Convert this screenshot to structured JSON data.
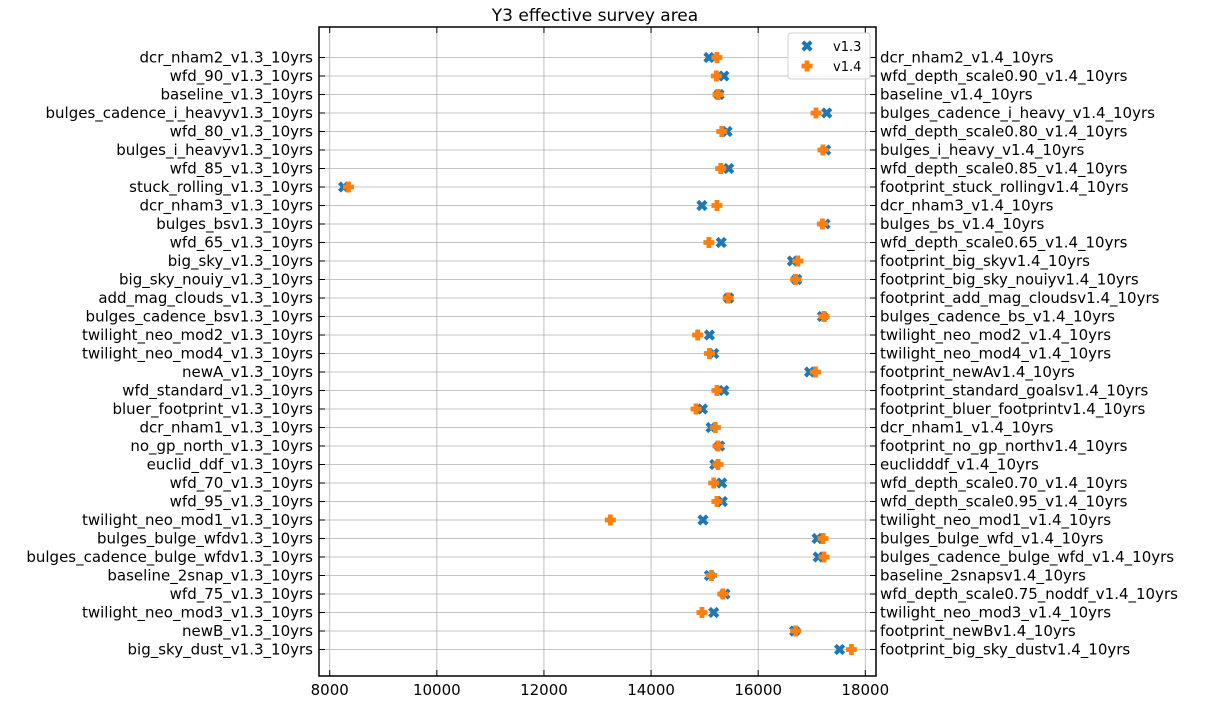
{
  "chart_data": {
    "type": "scatter",
    "title": "Y3 effective survey area",
    "xlabel": "",
    "ylabel": "",
    "xlim": [
      7800,
      18200
    ],
    "xticks": [
      8000,
      10000,
      12000,
      14000,
      16000,
      18000
    ],
    "grid": true,
    "legend_position": "top-right",
    "categories_left": [
      "dcr_nham2_v1.3_10yrs",
      "wfd_90_v1.3_10yrs",
      "baseline_v1.3_10yrs",
      "bulges_cadence_i_heavyv1.3_10yrs",
      "wfd_80_v1.3_10yrs",
      "bulges_i_heavyv1.3_10yrs",
      "wfd_85_v1.3_10yrs",
      "stuck_rolling_v1.3_10yrs",
      "dcr_nham3_v1.3_10yrs",
      "bulges_bsv1.3_10yrs",
      "wfd_65_v1.3_10yrs",
      "big_sky_v1.3_10yrs",
      "big_sky_nouiy_v1.3_10yrs",
      "add_mag_clouds_v1.3_10yrs",
      "bulges_cadence_bsv1.3_10yrs",
      "twilight_neo_mod2_v1.3_10yrs",
      "twilight_neo_mod4_v1.3_10yrs",
      "newA_v1.3_10yrs",
      "wfd_standard_v1.3_10yrs",
      "bluer_footprint_v1.3_10yrs",
      "dcr_nham1_v1.3_10yrs",
      "no_gp_north_v1.3_10yrs",
      "euclid_ddf_v1.3_10yrs",
      "wfd_70_v1.3_10yrs",
      "wfd_95_v1.3_10yrs",
      "twilight_neo_mod1_v1.3_10yrs",
      "bulges_bulge_wfdv1.3_10yrs",
      "bulges_cadence_bulge_wfdv1.3_10yrs",
      "baseline_2snap_v1.3_10yrs",
      "wfd_75_v1.3_10yrs",
      "twilight_neo_mod3_v1.3_10yrs",
      "newB_v1.3_10yrs",
      "big_sky_dust_v1.3_10yrs"
    ],
    "categories_right": [
      "dcr_nham2_v1.4_10yrs",
      "wfd_depth_scale0.90_v1.4_10yrs",
      "baseline_v1.4_10yrs",
      "bulges_cadence_i_heavy_v1.4_10yrs",
      "wfd_depth_scale0.80_v1.4_10yrs",
      "bulges_i_heavy_v1.4_10yrs",
      "wfd_depth_scale0.85_v1.4_10yrs",
      "footprint_stuck_rollingv1.4_10yrs",
      "dcr_nham3_v1.4_10yrs",
      "bulges_bs_v1.4_10yrs",
      "wfd_depth_scale0.65_v1.4_10yrs",
      "footprint_big_skyv1.4_10yrs",
      "footprint_big_sky_nouiyv1.4_10yrs",
      "footprint_add_mag_cloudsv1.4_10yrs",
      "bulges_cadence_bs_v1.4_10yrs",
      "twilight_neo_mod2_v1.4_10yrs",
      "twilight_neo_mod4_v1.4_10yrs",
      "footprint_newAv1.4_10yrs",
      "footprint_standard_goalsv1.4_10yrs",
      "footprint_bluer_footprintv1.4_10yrs",
      "dcr_nham1_v1.4_10yrs",
      "footprint_no_gp_northv1.4_10yrs",
      "euclidddf_v1.4_10yrs",
      "wfd_depth_scale0.70_v1.4_10yrs",
      "wfd_depth_scale0.95_v1.4_10yrs",
      "twilight_neo_mod1_v1.4_10yrs",
      "bulges_bulge_wfd_v1.4_10yrs",
      "bulges_cadence_bulge_wfd_v1.4_10yrs",
      "baseline_2snapsv1.4_10yrs",
      "wfd_depth_scale0.75_noddf_v1.4_10yrs",
      "twilight_neo_mod3_v1.4_10yrs",
      "footprint_newBv1.4_10yrs",
      "footprint_big_sky_dustv1.4_10yrs"
    ],
    "series": [
      {
        "name": "v1.3",
        "marker": "x",
        "color": "#1f77b4",
        "values": [
          15080,
          15360,
          15270,
          17280,
          15420,
          17260,
          15450,
          8260,
          14950,
          17250,
          15310,
          16640,
          16720,
          15450,
          17200,
          15090,
          15170,
          16960,
          15360,
          14960,
          15120,
          15280,
          15190,
          15320,
          15330,
          14970,
          17100,
          17120,
          15090,
          15380,
          15170,
          16680,
          17520
        ]
      },
      {
        "name": "v1.4",
        "marker": "P",
        "color": "#ff7f0e",
        "values": [
          15230,
          15220,
          15250,
          17080,
          15320,
          17210,
          15300,
          8350,
          15230,
          17200,
          15080,
          16740,
          16700,
          15440,
          17230,
          14870,
          15090,
          17070,
          15230,
          14840,
          15200,
          15250,
          15250,
          15170,
          15230,
          13240,
          17210,
          17230,
          15130,
          15340,
          14950,
          16700,
          17740
        ]
      }
    ]
  }
}
